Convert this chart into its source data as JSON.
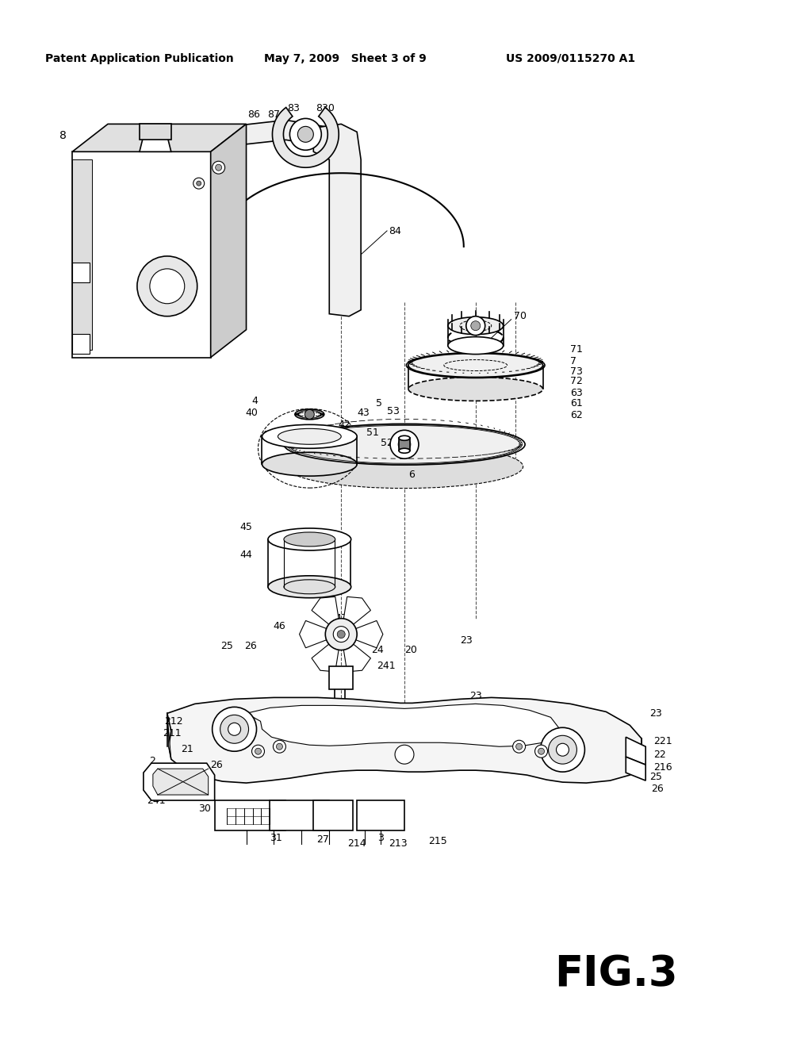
{
  "bg_color": "#ffffff",
  "header_left": "Patent Application Publication",
  "header_mid": "May 7, 2009   Sheet 3 of 9",
  "header_right": "US 2009/0115270 A1",
  "figure_label": "FIG.3"
}
